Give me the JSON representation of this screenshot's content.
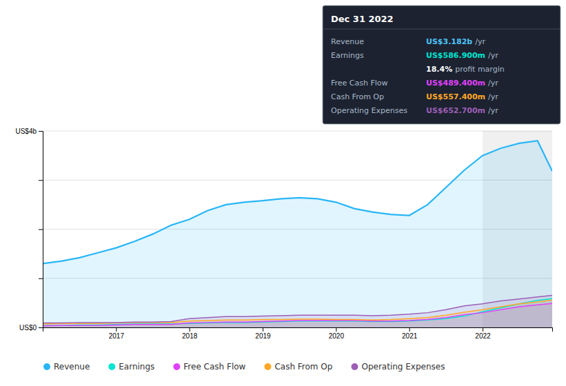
{
  "chart_data": {
    "type": "area",
    "x": [
      2016.0,
      2016.25,
      2016.5,
      2016.75,
      2017.0,
      2017.25,
      2017.5,
      2017.75,
      2018.0,
      2018.25,
      2018.5,
      2018.75,
      2019.0,
      2019.25,
      2019.5,
      2019.75,
      2020.0,
      2020.25,
      2020.5,
      2020.75,
      2021.0,
      2021.25,
      2021.5,
      2021.75,
      2022.0,
      2022.25,
      2022.5,
      2022.75,
      2022.95
    ],
    "series": [
      {
        "name": "Revenue",
        "color": "#29b6f6",
        "values": [
          1.3,
          1.35,
          1.42,
          1.52,
          1.62,
          1.75,
          1.9,
          2.08,
          2.2,
          2.38,
          2.5,
          2.55,
          2.58,
          2.62,
          2.64,
          2.62,
          2.55,
          2.42,
          2.35,
          2.3,
          2.28,
          2.5,
          2.85,
          3.2,
          3.5,
          3.65,
          3.75,
          3.8,
          3.182
        ]
      },
      {
        "name": "Earnings",
        "color": "#00e5d1",
        "values": [
          0.04,
          0.04,
          0.05,
          0.05,
          0.06,
          0.07,
          0.07,
          0.07,
          0.08,
          0.09,
          0.1,
          0.1,
          0.11,
          0.12,
          0.13,
          0.13,
          0.13,
          0.13,
          0.12,
          0.12,
          0.13,
          0.15,
          0.18,
          0.23,
          0.32,
          0.4,
          0.48,
          0.55,
          0.587
        ]
      },
      {
        "name": "Free Cash Flow",
        "color": "#e040fb",
        "values": [
          0.03,
          0.04,
          0.04,
          0.04,
          0.05,
          0.06,
          0.06,
          0.06,
          0.09,
          0.1,
          0.11,
          0.11,
          0.12,
          0.13,
          0.14,
          0.14,
          0.14,
          0.14,
          0.13,
          0.13,
          0.14,
          0.16,
          0.2,
          0.26,
          0.3,
          0.36,
          0.42,
          0.46,
          0.489
        ]
      },
      {
        "name": "Cash From Op",
        "color": "#ffa726",
        "values": [
          0.07,
          0.08,
          0.08,
          0.08,
          0.09,
          0.1,
          0.1,
          0.1,
          0.13,
          0.14,
          0.15,
          0.15,
          0.16,
          0.16,
          0.17,
          0.17,
          0.16,
          0.16,
          0.15,
          0.16,
          0.18,
          0.2,
          0.25,
          0.31,
          0.36,
          0.42,
          0.48,
          0.52,
          0.557
        ]
      },
      {
        "name": "Operating Expenses",
        "color": "#9c5fb5",
        "values": [
          0.09,
          0.09,
          0.1,
          0.1,
          0.1,
          0.11,
          0.11,
          0.12,
          0.18,
          0.2,
          0.22,
          0.22,
          0.23,
          0.24,
          0.25,
          0.25,
          0.25,
          0.25,
          0.24,
          0.25,
          0.27,
          0.3,
          0.36,
          0.44,
          0.48,
          0.54,
          0.58,
          0.62,
          0.653
        ]
      }
    ],
    "xlim": [
      2016.0,
      2022.95
    ],
    "xticks": [
      2017,
      2018,
      2019,
      2020,
      2021,
      2022
    ],
    "ylim": [
      0,
      4.0
    ],
    "yticks": [
      {
        "value": 0,
        "label": "US$0"
      },
      {
        "value": 1,
        "label": null
      },
      {
        "value": 2,
        "label": null
      },
      {
        "value": 3,
        "label": null
      },
      {
        "value": 4,
        "label": "US$4b"
      }
    ],
    "grid": true,
    "legend": "bottom",
    "highlight_range": [
      2022.0,
      2022.95
    ],
    "annotations": [
      {
        "text": "Dec 31 2022"
      },
      {
        "label": "Revenue",
        "text": "US$3.182b",
        "suffix": "/yr",
        "color": "#4fc3f7"
      },
      {
        "label": "Earnings",
        "text": "US$586.900m",
        "suffix": "/yr",
        "color": "#00e5d1"
      },
      {
        "text": "18.4%",
        "suffix": "profit margin",
        "color": "#ffffff"
      },
      {
        "label": "Free Cash Flow",
        "text": "US$489.400m",
        "suffix": "/yr",
        "color": "#e040fb"
      },
      {
        "label": "Cash From Op",
        "text": "US$557.400m",
        "suffix": "/yr",
        "color": "#ffa726"
      },
      {
        "label": "Operating Expenses",
        "text": "US$652.700m",
        "suffix": "/yr",
        "color": "#9c5fb5"
      }
    ]
  }
}
